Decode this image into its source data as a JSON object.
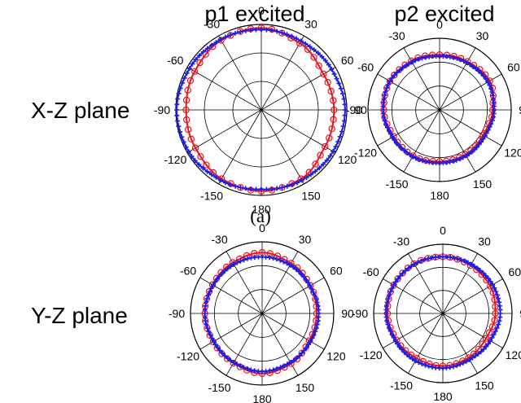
{
  "column_titles": [
    "p1 excited",
    "p2 excited"
  ],
  "row_labels": [
    "X-Z plane",
    "Y-Z plane"
  ],
  "caption": "(a)",
  "angle_tick_labels": [
    "0",
    "30",
    "60",
    "90",
    "120",
    "150",
    "180",
    "-150",
    "-120",
    "-90",
    "-60",
    "-30"
  ],
  "colors": {
    "measured": "#e8141e",
    "simulated": "#1e1ee6",
    "grid": "#000000"
  },
  "chart_data": [
    {
      "type": "polar",
      "panel": "X-Z plane, p1 excited",
      "r_max": 1,
      "rings": 3,
      "spokes_deg": 30,
      "series": [
        {
          "marker": "circle",
          "color": "#e8141e",
          "theta_deg": [
            0,
            30,
            60,
            90,
            120,
            150,
            180,
            210,
            240,
            270,
            300,
            330
          ],
          "r": [
            0.96,
            0.9,
            0.84,
            0.85,
            0.86,
            0.93,
            0.95,
            0.93,
            0.89,
            0.88,
            0.9,
            0.94
          ]
        },
        {
          "marker": "plus",
          "color": "#1e1ee6",
          "theta_deg": [
            0,
            30,
            60,
            90,
            120,
            150,
            180,
            210,
            240,
            270,
            300,
            330
          ],
          "r": [
            0.94,
            0.93,
            0.95,
            0.98,
            0.97,
            0.95,
            0.93,
            0.95,
            0.98,
            0.99,
            0.97,
            0.95
          ]
        }
      ]
    },
    {
      "type": "polar",
      "panel": "X-Z plane, p2 excited",
      "r_max": 1,
      "rings": 3,
      "spokes_deg": 30,
      "series": [
        {
          "marker": "circle",
          "color": "#e8141e",
          "theta_deg": [
            0,
            30,
            60,
            90,
            120,
            150,
            180,
            210,
            240,
            270,
            300,
            330
          ],
          "r": [
            0.77,
            0.78,
            0.81,
            0.74,
            0.7,
            0.72,
            0.72,
            0.74,
            0.74,
            0.78,
            0.8,
            0.79
          ]
        },
        {
          "marker": "plus",
          "color": "#1e1ee6",
          "theta_deg": [
            0,
            30,
            60,
            90,
            120,
            150,
            180,
            210,
            240,
            270,
            300,
            330
          ],
          "r": [
            0.75,
            0.76,
            0.78,
            0.76,
            0.73,
            0.74,
            0.74,
            0.75,
            0.76,
            0.79,
            0.8,
            0.77
          ]
        }
      ]
    },
    {
      "type": "polar",
      "panel": "Y-Z plane, p1 excited",
      "r_max": 1,
      "rings": 3,
      "spokes_deg": 30,
      "series": [
        {
          "marker": "circle",
          "color": "#e8141e",
          "theta_deg": [
            0,
            30,
            60,
            90,
            120,
            150,
            180,
            210,
            240,
            270,
            300,
            330
          ],
          "r": [
            0.85,
            0.81,
            0.78,
            0.76,
            0.76,
            0.81,
            0.84,
            0.8,
            0.79,
            0.8,
            0.8,
            0.82
          ]
        },
        {
          "marker": "plus",
          "color": "#1e1ee6",
          "theta_deg": [
            0,
            30,
            60,
            90,
            120,
            150,
            180,
            210,
            240,
            270,
            300,
            330
          ],
          "r": [
            0.79,
            0.78,
            0.77,
            0.79,
            0.78,
            0.79,
            0.81,
            0.79,
            0.78,
            0.8,
            0.79,
            0.79
          ]
        }
      ]
    },
    {
      "type": "polar",
      "panel": "Y-Z plane, p2 excited",
      "r_max": 1,
      "rings": 3,
      "spokes_deg": 30,
      "series": [
        {
          "marker": "circle",
          "color": "#e8141e",
          "theta_deg": [
            0,
            30,
            60,
            90,
            120,
            150,
            180,
            210,
            240,
            270,
            300,
            330
          ],
          "r": [
            0.82,
            0.8,
            0.79,
            0.76,
            0.72,
            0.74,
            0.76,
            0.75,
            0.77,
            0.8,
            0.82,
            0.83
          ]
        },
        {
          "marker": "plus",
          "color": "#1e1ee6",
          "theta_deg": [
            0,
            30,
            60,
            90,
            120,
            150,
            180,
            210,
            240,
            270,
            300,
            330
          ],
          "r": [
            0.82,
            0.82,
            0.83,
            0.83,
            0.79,
            0.77,
            0.79,
            0.79,
            0.79,
            0.82,
            0.82,
            0.82
          ]
        }
      ]
    }
  ]
}
